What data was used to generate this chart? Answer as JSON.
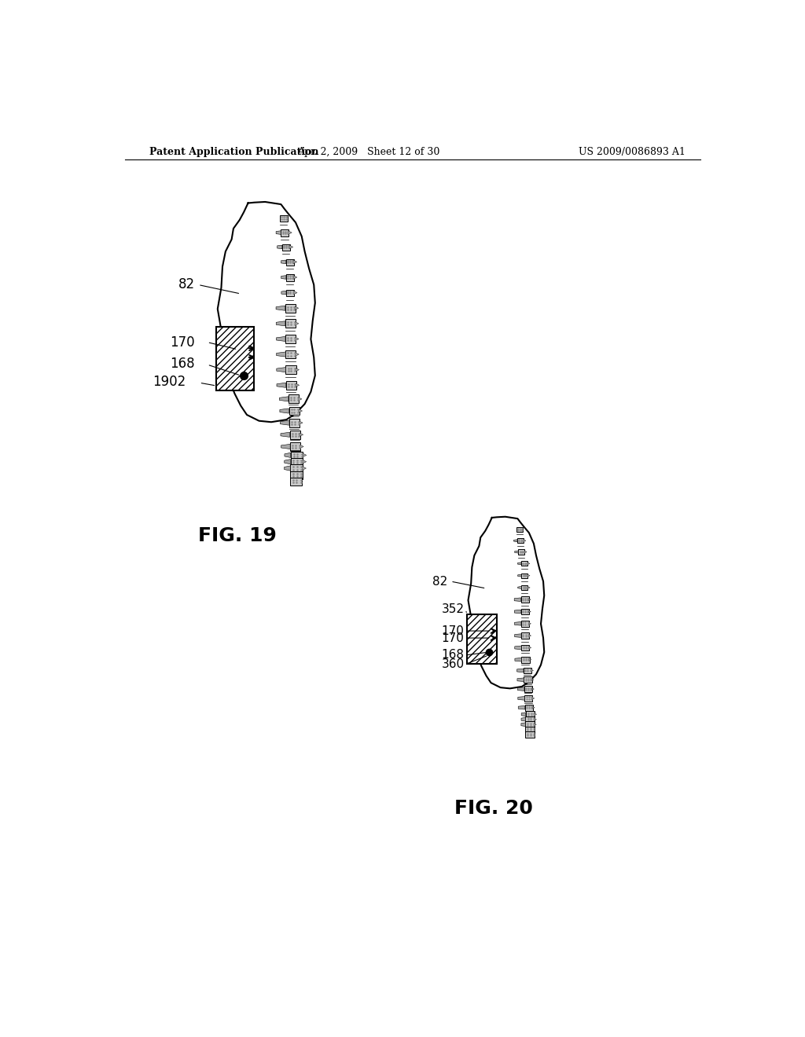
{
  "bg_color": "#ffffff",
  "header_left": "Patent Application Publication",
  "header_mid": "Apr. 2, 2009   Sheet 12 of 30",
  "header_right": "US 2009/0086893 A1",
  "fig19_label": "FIG. 19",
  "fig20_label": "FIG. 20"
}
